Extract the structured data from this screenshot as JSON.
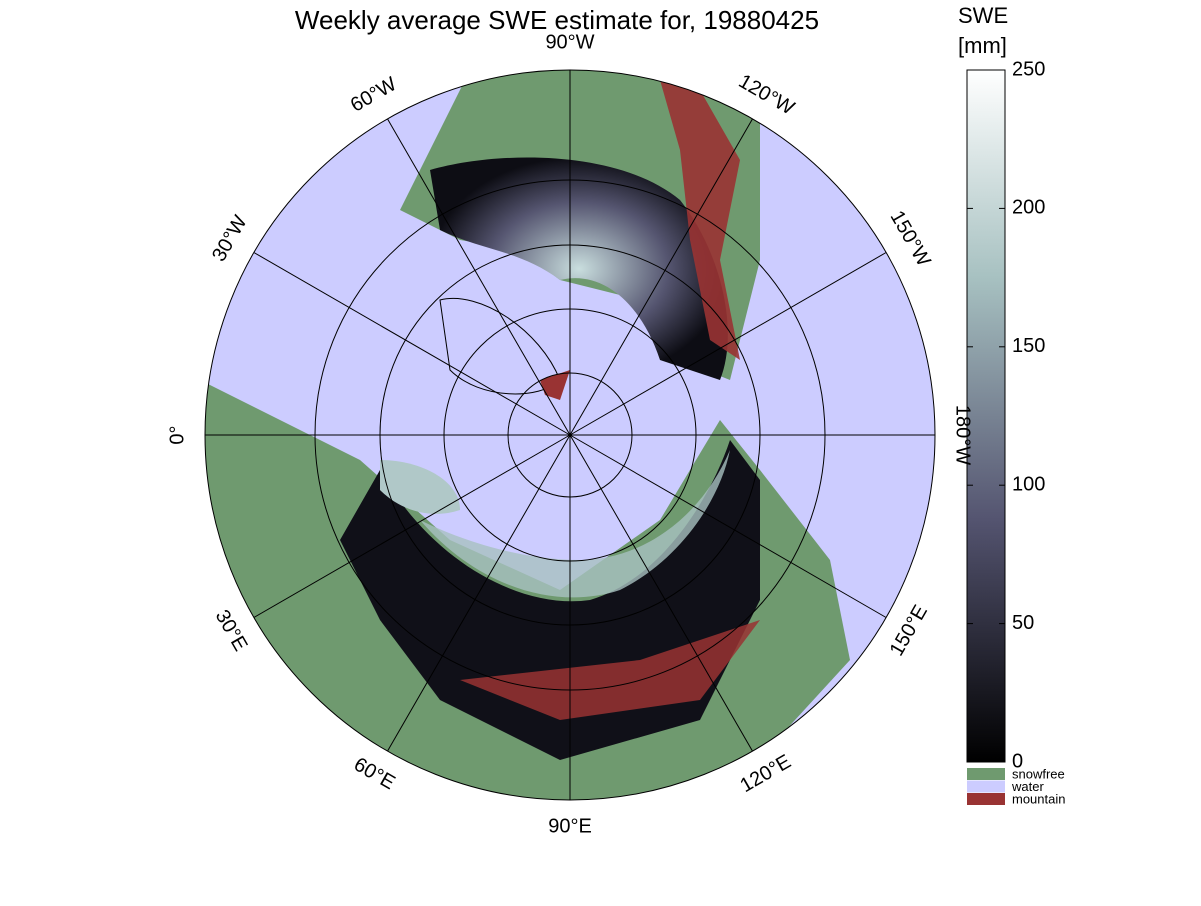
{
  "title": "Weekly average SWE estimate for, 19880425",
  "map": {
    "lon_ticks": [
      {
        "value": -90,
        "label": "90°W"
      },
      {
        "value": -120,
        "label": "120°W"
      },
      {
        "value": -150,
        "label": "150°W"
      },
      {
        "value": 180,
        "label": "180°W"
      },
      {
        "value": 150,
        "label": "150°E"
      },
      {
        "value": 120,
        "label": "120°E"
      },
      {
        "value": 90,
        "label": "90°E"
      },
      {
        "value": 60,
        "label": "60°E"
      },
      {
        "value": 30,
        "label": "30°E"
      },
      {
        "value": 0,
        "label": "0°"
      },
      {
        "value": -30,
        "label": "30°W"
      },
      {
        "value": -60,
        "label": "60°W"
      }
    ]
  },
  "colorbar": {
    "label": [
      "SWE",
      "[mm]"
    ],
    "range": [
      0,
      250
    ],
    "ticks": [
      0,
      50,
      100,
      150,
      200,
      250
    ]
  },
  "legend": [
    {
      "name": "snowfree",
      "color": "#6f9a6f"
    },
    {
      "name": "water",
      "color": "#ccccff"
    },
    {
      "name": "mountain",
      "color": "#993333"
    }
  ]
}
